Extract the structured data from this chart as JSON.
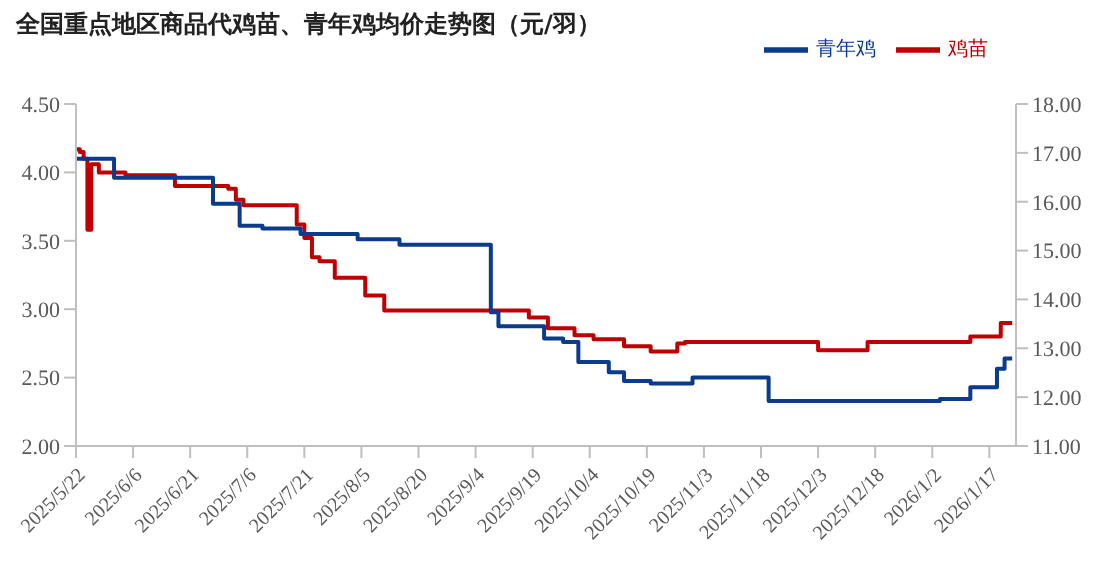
{
  "chart_data": {
    "type": "step",
    "title": "全国重点地区商品代鸡苗、青年鸡均价走势图（元/羽）",
    "series": [
      {
        "name": "鸡苗",
        "color": "#c00000",
        "x": [
          "2025-05-22",
          "2025-05-23",
          "2025-05-24",
          "2025-05-25",
          "2025-05-26",
          "2025-05-28",
          "2025-06-04",
          "2025-06-17",
          "2025-07-01",
          "2025-07-03",
          "2025-07-05",
          "2025-07-19",
          "2025-07-21",
          "2025-07-23",
          "2025-07-25",
          "2025-07-29",
          "2025-08-06",
          "2025-08-11",
          "2025-09-18",
          "2025-09-23",
          "2025-09-30",
          "2025-10-05",
          "2025-10-13",
          "2025-10-20",
          "2025-10-27",
          "2025-10-29",
          "2025-12-03",
          "2025-12-16",
          "2026-01-12",
          "2026-01-20",
          "2026-01-23"
        ],
        "values": [
          4.17,
          4.15,
          4.1,
          3.58,
          4.06,
          4.0,
          3.98,
          3.9,
          3.88,
          3.8,
          3.76,
          3.62,
          3.52,
          3.38,
          3.35,
          3.23,
          3.1,
          2.99,
          2.94,
          2.86,
          2.81,
          2.78,
          2.73,
          2.69,
          2.75,
          2.76,
          2.7,
          2.76,
          2.8,
          2.9,
          2.9
        ]
      },
      {
        "name": "青年鸡",
        "color": "#0b3b8c",
        "axis": "y2",
        "x": [
          "2025-05-22",
          "2025-06-01",
          "2025-06-27",
          "2025-07-04",
          "2025-07-10",
          "2025-07-20",
          "2025-08-04",
          "2025-08-15",
          "2025-09-08",
          "2025-09-10",
          "2025-09-22",
          "2025-09-27",
          "2025-10-01",
          "2025-10-09",
          "2025-10-13",
          "2025-10-20",
          "2025-10-31",
          "2025-11-20",
          "2026-01-04",
          "2026-01-12",
          "2026-01-19",
          "2026-01-21",
          "2026-01-23"
        ],
        "values": [
          16.88,
          16.49,
          15.96,
          15.51,
          15.45,
          15.34,
          15.23,
          15.12,
          13.74,
          13.45,
          13.2,
          13.13,
          12.72,
          12.51,
          12.33,
          12.28,
          12.4,
          11.92,
          11.96,
          12.2,
          12.58,
          12.79,
          12.79
        ]
      }
    ],
    "xlim": [
      "2025-05-22",
      "2026-01-24"
    ],
    "xticks": [
      {
        "value": "2025-05-22",
        "label": "2025/5/22"
      },
      {
        "value": "2025-06-06",
        "label": "2025/6/6"
      },
      {
        "value": "2025-06-21",
        "label": "2025/6/21"
      },
      {
        "value": "2025-07-06",
        "label": "2025/7/6"
      },
      {
        "value": "2025-07-21",
        "label": "2025/7/21"
      },
      {
        "value": "2025-08-05",
        "label": "2025/8/5"
      },
      {
        "value": "2025-08-20",
        "label": "2025/8/20"
      },
      {
        "value": "2025-09-04",
        "label": "2025/9/4"
      },
      {
        "value": "2025-09-19",
        "label": "2025/9/19"
      },
      {
        "value": "2025-10-04",
        "label": "2025/10/4"
      },
      {
        "value": "2025-10-19",
        "label": "2025/10/19"
      },
      {
        "value": "2025-11-03",
        "label": "2025/11/3"
      },
      {
        "value": "2025-11-18",
        "label": "2025/11/18"
      },
      {
        "value": "2025-12-03",
        "label": "2025/12/3"
      },
      {
        "value": "2025-12-18",
        "label": "2025/12/18"
      },
      {
        "value": "2026-01-02",
        "label": "2026/1/2"
      },
      {
        "value": "2026-01-17",
        "label": "2026/1/17"
      }
    ],
    "ylim": [
      2,
      4.5
    ],
    "yticks": [
      {
        "value": 2,
        "label": "2.00"
      },
      {
        "value": 2.5,
        "label": "2.50"
      },
      {
        "value": 3,
        "label": "3.00"
      },
      {
        "value": 3.5,
        "label": "3.50"
      },
      {
        "value": 4,
        "label": "4.00"
      },
      {
        "value": 4.5,
        "label": "4.50"
      }
    ],
    "y2lim": [
      11,
      18
    ],
    "y2ticks": [
      {
        "value": 11,
        "label": "11.00"
      },
      {
        "value": 12,
        "label": "12.00"
      },
      {
        "value": 13,
        "label": "13.00"
      },
      {
        "value": 14,
        "label": "14.00"
      },
      {
        "value": 15,
        "label": "15.00"
      },
      {
        "value": 16,
        "label": "16.00"
      },
      {
        "value": 17,
        "label": "17.00"
      },
      {
        "value": 18,
        "label": "18.00"
      }
    ],
    "legend": "top right"
  }
}
